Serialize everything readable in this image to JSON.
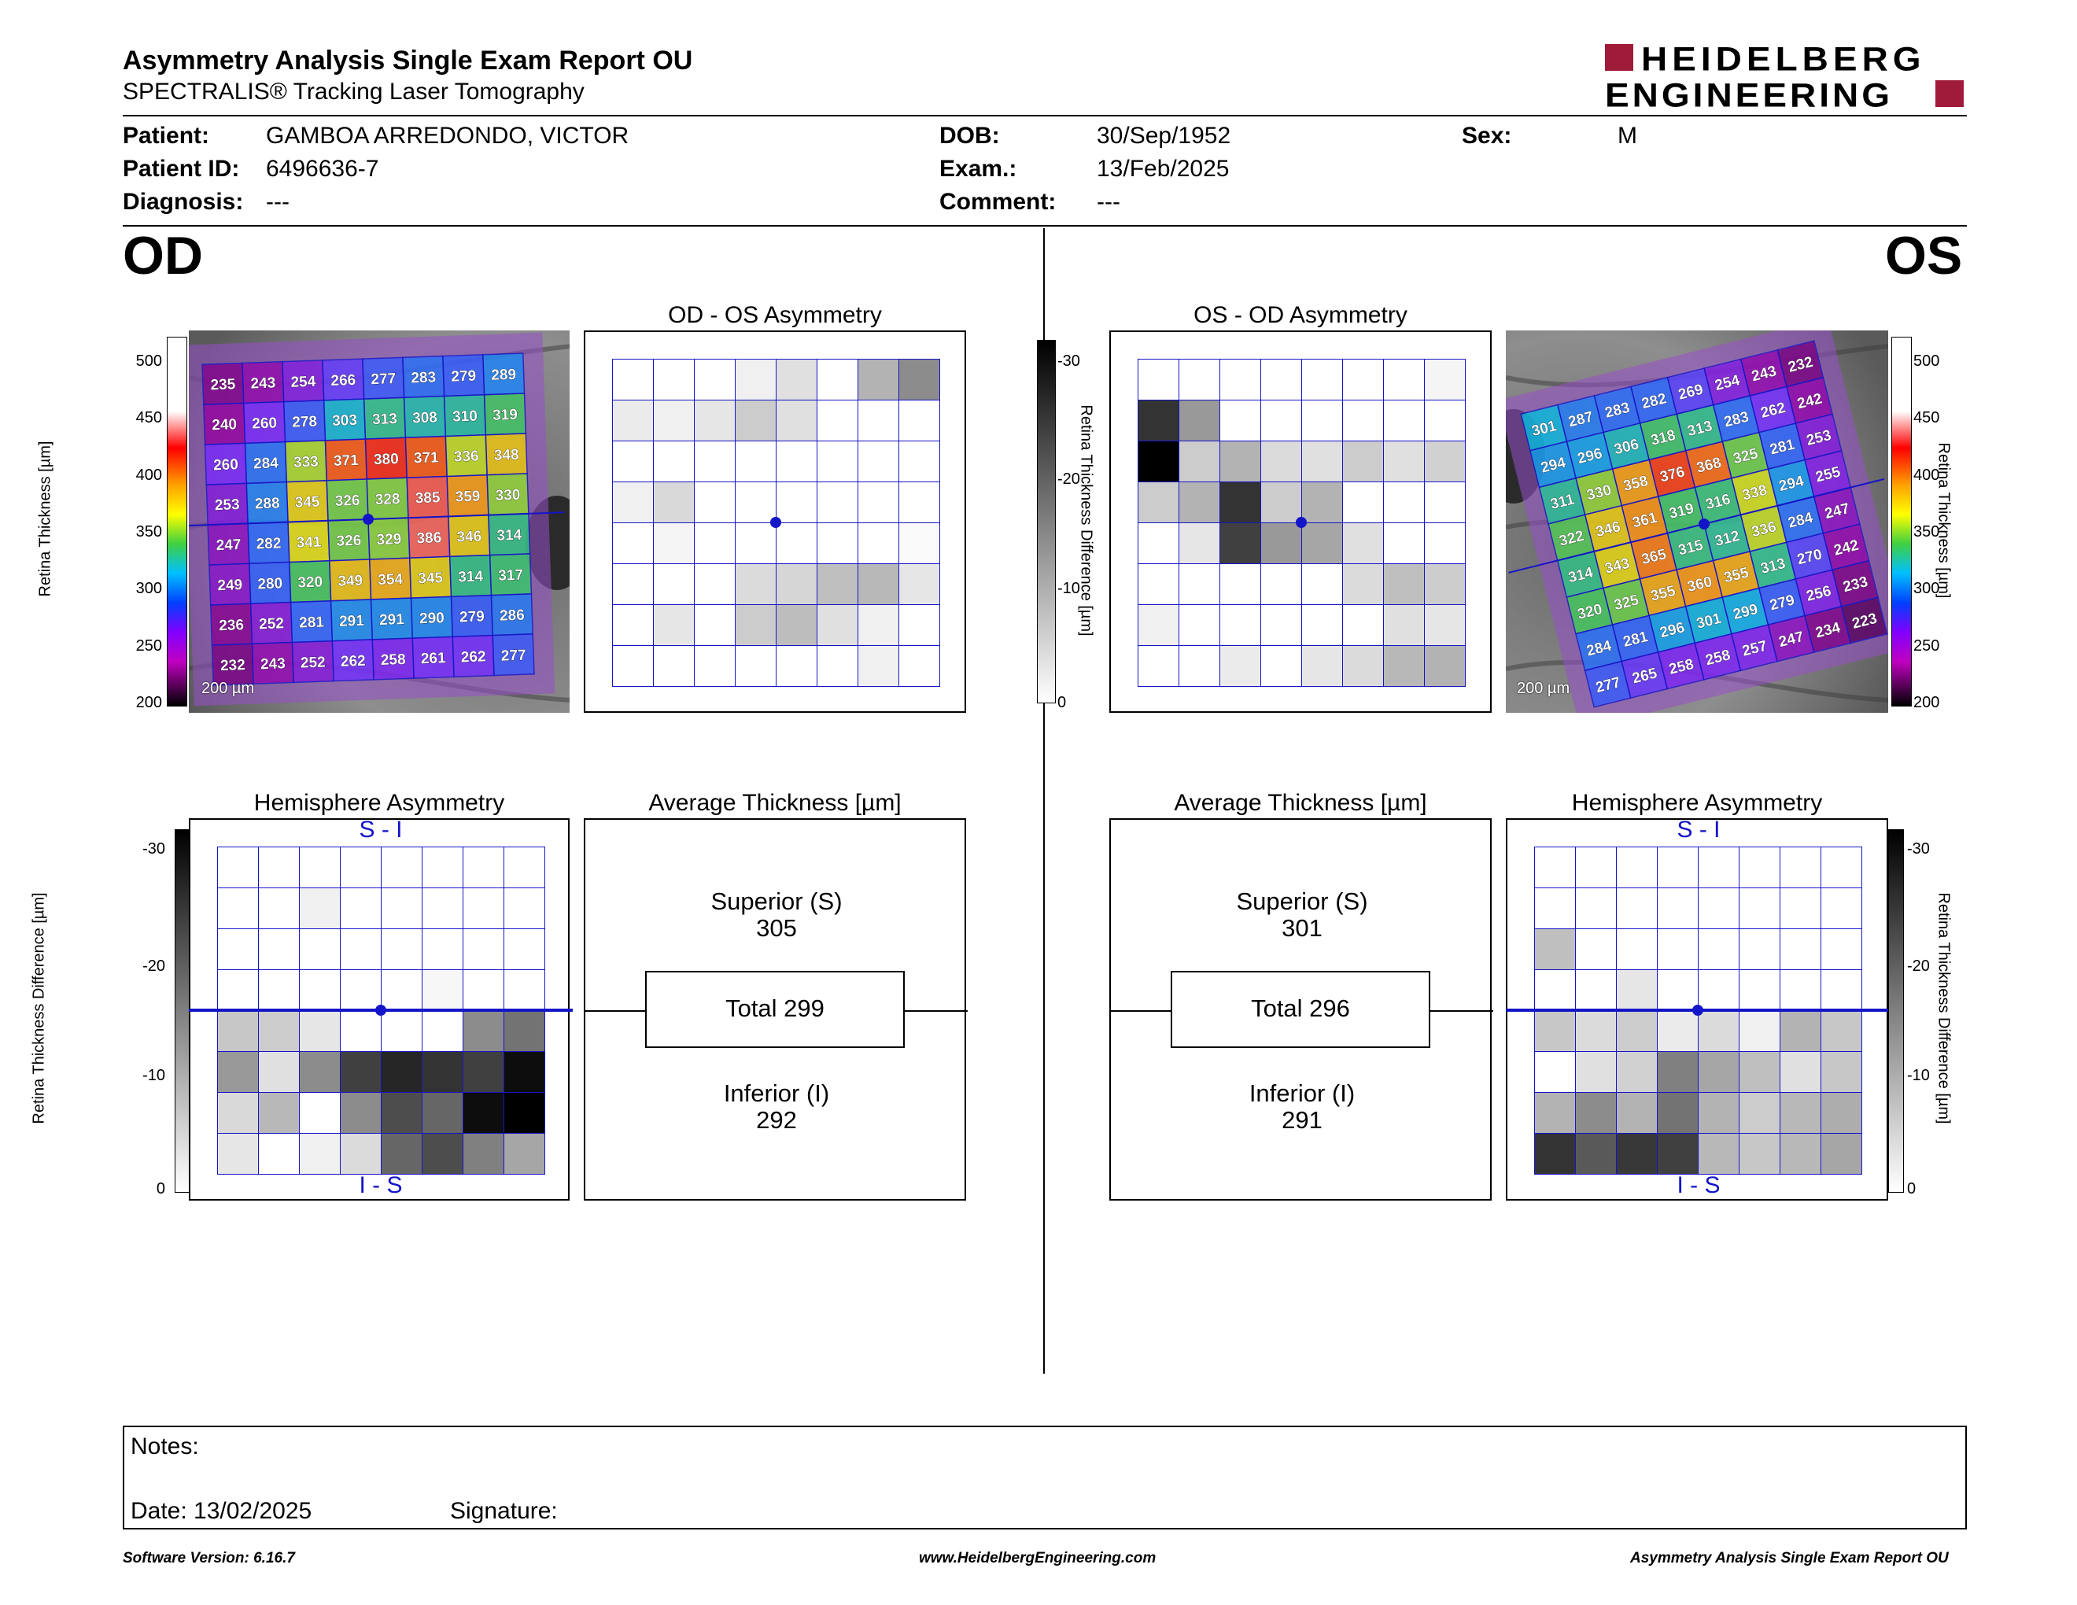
{
  "header": {
    "title": "Asymmetry Analysis Single Exam Report OU",
    "subtitle": "SPECTRALIS® Tracking Laser Tomography",
    "logo_line1": "HEIDELBERG",
    "logo_line2": "ENGINEERING"
  },
  "patient": {
    "patient_label": "Patient:",
    "patient_value": "GAMBOA ARREDONDO, VICTOR",
    "id_label": "Patient ID:",
    "id_value": "6496636-7",
    "diagnosis_label": "Diagnosis:",
    "diagnosis_value": "---",
    "dob_label": "DOB:",
    "dob_value": "30/Sep/1952",
    "exam_label": "Exam.:",
    "exam_value": "13/Feb/2025",
    "comment_label": "Comment:",
    "comment_value": "---",
    "sex_label": "Sex:",
    "sex_value": "M"
  },
  "eyes": {
    "od": "OD",
    "os": "OS"
  },
  "panels": {
    "od_asym_title": "OD - OS Asymmetry",
    "os_asym_title": "OS - OD Asymmetry",
    "hemi_title": "Hemisphere Asymmetry",
    "avg_title": "Average Thickness [µm]",
    "si_label": "S - I",
    "is_label": "I - S",
    "scale_bar": "200 µm"
  },
  "axes": {
    "thickness_label": "Retina Thickness [µm]",
    "thickness_ticks": [
      "500",
      "450",
      "400",
      "350",
      "300",
      "250",
      "200"
    ],
    "diff_label": "Retina Thickness Difference [µm]",
    "diff_ticks": [
      "-30",
      "-20",
      "-10",
      "0"
    ]
  },
  "od": {
    "thickness": [
      [
        235,
        243,
        254,
        266,
        277,
        283,
        279,
        289
      ],
      [
        240,
        260,
        278,
        303,
        313,
        308,
        310,
        319
      ],
      [
        260,
        284,
        333,
        371,
        380,
        371,
        336,
        348
      ],
      [
        253,
        288,
        345,
        326,
        328,
        385,
        359,
        330
      ],
      [
        247,
        282,
        341,
        326,
        329,
        386,
        346,
        314
      ],
      [
        249,
        280,
        320,
        349,
        354,
        345,
        314,
        317
      ],
      [
        236,
        252,
        281,
        291,
        291,
        290,
        279,
        286
      ],
      [
        232,
        243,
        252,
        262,
        258,
        261,
        262,
        277
      ]
    ],
    "asymmetry": [
      [
        0,
        0,
        0,
        0.06,
        0.12,
        0,
        0.3,
        0.45
      ],
      [
        0.08,
        0.06,
        0.1,
        0.2,
        0.12,
        0,
        0,
        0
      ],
      [
        0,
        0,
        0,
        0,
        0,
        0,
        0,
        0
      ],
      [
        0.06,
        0.15,
        0,
        0,
        0,
        0,
        0,
        0
      ],
      [
        0,
        0.04,
        0,
        0,
        0,
        0,
        0,
        0.02
      ],
      [
        0,
        0,
        0,
        0.14,
        0.16,
        0.25,
        0.28,
        0.1
      ],
      [
        0,
        0.1,
        0,
        0.2,
        0.26,
        0.12,
        0.06,
        0
      ],
      [
        0,
        0,
        0,
        0,
        0,
        0,
        0.06,
        0
      ]
    ],
    "hemisphere": [
      [
        0,
        0,
        0,
        0,
        0,
        0,
        0,
        0
      ],
      [
        0,
        0,
        0.06,
        0,
        0,
        0,
        0,
        0
      ],
      [
        0,
        0,
        0,
        0,
        0,
        0,
        0,
        0
      ],
      [
        0,
        0,
        0,
        0,
        0,
        0.03,
        0,
        0
      ],
      [
        0.22,
        0.2,
        0.1,
        0,
        0,
        0,
        0.45,
        0.55
      ],
      [
        0.4,
        0.12,
        0.45,
        0.75,
        0.85,
        0.8,
        0.75,
        0.95
      ],
      [
        0.15,
        0.28,
        0,
        0.45,
        0.7,
        0.6,
        0.95,
        1.0
      ],
      [
        0.1,
        0,
        0.06,
        0.14,
        0.6,
        0.7,
        0.5,
        0.35
      ]
    ],
    "avg": {
      "superior_label": "Superior (S)",
      "superior_value": "305",
      "total": "Total 299",
      "inferior_label": "Inferior (I)",
      "inferior_value": "292"
    }
  },
  "os": {
    "thickness": [
      [
        301,
        287,
        283,
        282,
        269,
        254,
        243,
        232
      ],
      [
        294,
        296,
        306,
        318,
        313,
        283,
        262,
        242
      ],
      [
        311,
        330,
        358,
        376,
        368,
        325,
        281,
        253
      ],
      [
        322,
        346,
        361,
        319,
        316,
        338,
        294,
        255
      ],
      [
        314,
        343,
        365,
        315,
        312,
        336,
        284,
        247
      ],
      [
        320,
        325,
        355,
        360,
        355,
        313,
        270,
        242
      ],
      [
        284,
        281,
        296,
        301,
        299,
        279,
        256,
        233
      ],
      [
        277,
        265,
        258,
        258,
        257,
        247,
        234,
        223
      ]
    ],
    "asymmetry": [
      [
        0,
        0,
        0,
        0,
        0,
        0,
        0,
        0.04
      ],
      [
        0.8,
        0.4,
        0,
        0,
        0,
        0,
        0,
        0
      ],
      [
        1.0,
        0.2,
        0.3,
        0.14,
        0.12,
        0.2,
        0.12,
        0.18
      ],
      [
        0.2,
        0.3,
        0.8,
        0.2,
        0.3,
        0,
        0,
        0
      ],
      [
        0,
        0.1,
        0.75,
        0.4,
        0.35,
        0.12,
        0,
        0
      ],
      [
        0,
        0,
        0,
        0,
        0,
        0.14,
        0.25,
        0.2
      ],
      [
        0.06,
        0,
        0,
        0,
        0,
        0,
        0.12,
        0.1
      ],
      [
        0,
        0,
        0.08,
        0,
        0.1,
        0.14,
        0.28,
        0.3
      ]
    ],
    "hemisphere": [
      [
        0,
        0,
        0,
        0,
        0,
        0,
        0,
        0
      ],
      [
        0,
        0,
        0,
        0,
        0,
        0,
        0,
        0
      ],
      [
        0.25,
        0,
        0,
        0,
        0,
        0,
        0,
        0
      ],
      [
        0,
        0,
        0.1,
        0,
        0,
        0,
        0,
        0
      ],
      [
        0.22,
        0.14,
        0.2,
        0.08,
        0.14,
        0.06,
        0.3,
        0.22
      ],
      [
        0,
        0.12,
        0.18,
        0.5,
        0.35,
        0.25,
        0.12,
        0.22
      ],
      [
        0.3,
        0.45,
        0.3,
        0.55,
        0.3,
        0.2,
        0.28,
        0.32
      ],
      [
        0.8,
        0.65,
        0.78,
        0.75,
        0.28,
        0.22,
        0.28,
        0.35
      ]
    ],
    "avg": {
      "superior_label": "Superior (S)",
      "superior_value": "301",
      "total": "Total 296",
      "inferior_label": "Inferior (I)",
      "inferior_value": "291"
    }
  },
  "notes": {
    "notes_label": "Notes:",
    "date_label": "Date: 13/02/2025",
    "signature_label": "Signature:"
  },
  "footer": {
    "left": "Software Version: 6.16.7",
    "center": "www.HeidelbergEngineering.com",
    "right": "Asymmetry Analysis Single Exam Report OU"
  }
}
